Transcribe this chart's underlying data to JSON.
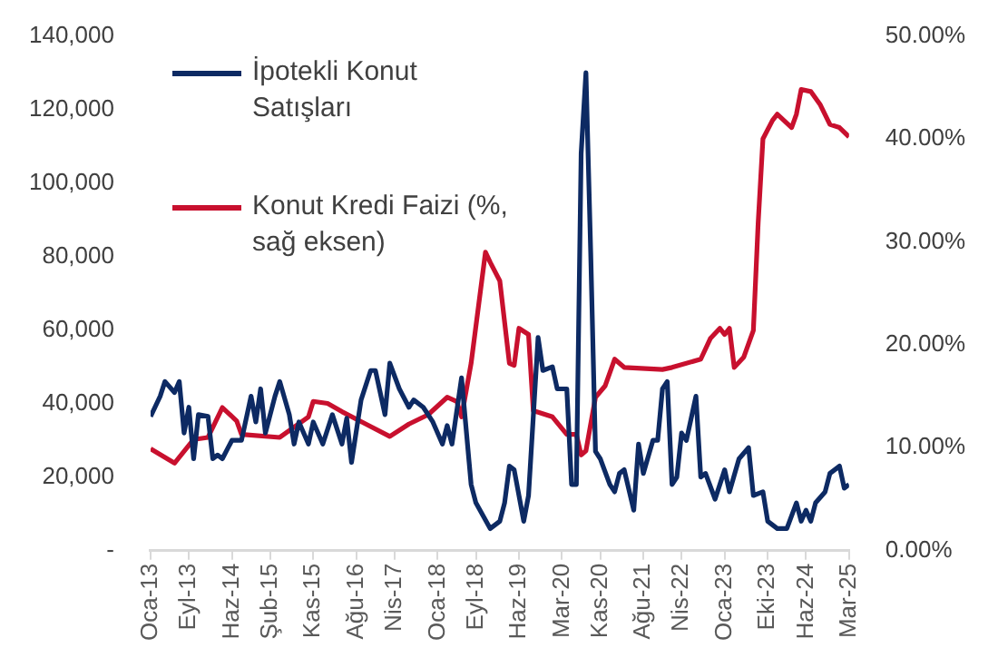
{
  "chart_data": {
    "type": "line",
    "legend": "top left",
    "xlim": [
      "2013-01",
      "2025-03"
    ],
    "xticks": [
      {
        "value": "2013-01",
        "label": "Oca-13"
      },
      {
        "value": "2013-09",
        "label": "Eyl-13"
      },
      {
        "value": "2014-06",
        "label": "Haz-14"
      },
      {
        "value": "2015-02",
        "label": "Şub-15"
      },
      {
        "value": "2015-11",
        "label": "Kas-15"
      },
      {
        "value": "2016-08",
        "label": "Ağu-16"
      },
      {
        "value": "2017-04",
        "label": "Nis-17"
      },
      {
        "value": "2018-01",
        "label": "Oca-18"
      },
      {
        "value": "2018-09",
        "label": "Eyl-18"
      },
      {
        "value": "2019-06",
        "label": "Haz-19"
      },
      {
        "value": "2020-03",
        "label": "Mar-20"
      },
      {
        "value": "2020-11",
        "label": "Kas-20"
      },
      {
        "value": "2021-08",
        "label": "Ağu-21"
      },
      {
        "value": "2022-04",
        "label": "Nis-22"
      },
      {
        "value": "2023-01",
        "label": "Oca-23"
      },
      {
        "value": "2023-10",
        "label": "Eki-23"
      },
      {
        "value": "2024-06",
        "label": "Haz-24"
      },
      {
        "value": "2025-03",
        "label": "Mar-25"
      }
    ],
    "ylim": [
      0,
      140000
    ],
    "yticks": [
      {
        "value": 0,
        "label": "-"
      },
      {
        "value": 20000,
        "label": "20,000"
      },
      {
        "value": 40000,
        "label": "40,000"
      },
      {
        "value": 60000,
        "label": "60,000"
      },
      {
        "value": 80000,
        "label": "80,000"
      },
      {
        "value": 100000,
        "label": "100,000"
      },
      {
        "value": 120000,
        "label": "120,000"
      },
      {
        "value": 140000,
        "label": "140,000"
      }
    ],
    "y2lim": [
      0,
      50
    ],
    "y2ticks": [
      {
        "value": 0,
        "label": "0.00%"
      },
      {
        "value": 10,
        "label": "10.00%"
      },
      {
        "value": 20,
        "label": "20.00%"
      },
      {
        "value": 30,
        "label": "30.00%"
      },
      {
        "value": 40,
        "label": "40.00%"
      },
      {
        "value": 50,
        "label": "50.00%"
      }
    ],
    "series": [
      {
        "name": "İpotekli Konut Satışları",
        "color": "#0d2a63",
        "x": [
          "2013-01",
          "2013-03",
          "2013-04",
          "2013-06",
          "2013-07",
          "2013-08",
          "2013-09",
          "2013-10",
          "2013-11",
          "2014-01",
          "2014-02",
          "2014-03",
          "2014-04",
          "2014-06",
          "2014-08",
          "2014-10",
          "2014-11",
          "2014-12",
          "2015-01",
          "2015-03",
          "2015-04",
          "2015-06",
          "2015-07",
          "2015-08",
          "2015-10",
          "2015-11",
          "2016-01",
          "2016-03",
          "2016-05",
          "2016-06",
          "2016-07",
          "2016-09",
          "2016-11",
          "2016-12",
          "2017-02",
          "2017-03",
          "2017-05",
          "2017-07",
          "2017-08",
          "2017-10",
          "2017-12",
          "2018-02",
          "2018-03",
          "2018-04",
          "2018-06",
          "2018-08",
          "2018-09",
          "2018-12",
          "2019-02",
          "2019-03",
          "2019-04",
          "2019-05",
          "2019-07",
          "2019-08",
          "2019-10",
          "2019-11",
          "2020-01",
          "2020-02",
          "2020-04",
          "2020-05",
          "2020-06",
          "2020-07",
          "2020-08",
          "2020-09",
          "2020-10",
          "2020-11",
          "2021-01",
          "2021-02",
          "2021-03",
          "2021-04",
          "2021-06",
          "2021-07",
          "2021-08",
          "2021-10",
          "2021-11",
          "2021-12",
          "2022-01",
          "2022-02",
          "2022-03",
          "2022-04",
          "2022-05",
          "2022-07",
          "2022-08",
          "2022-09",
          "2022-11",
          "2023-01",
          "2023-02",
          "2023-04",
          "2023-06",
          "2023-07",
          "2023-09",
          "2023-10",
          "2023-12",
          "2024-02",
          "2024-04",
          "2024-05",
          "2024-06",
          "2024-07",
          "2024-08",
          "2024-10",
          "2024-11",
          "2025-01",
          "2025-02",
          "2025-03"
        ],
        "values": [
          36500,
          42000,
          46000,
          43000,
          46000,
          32000,
          39000,
          25000,
          37000,
          36500,
          25000,
          26000,
          25000,
          30000,
          30000,
          42000,
          35000,
          44000,
          32000,
          42000,
          46000,
          37000,
          29000,
          35000,
          29000,
          35000,
          29000,
          37000,
          29000,
          36000,
          24000,
          41000,
          49000,
          49000,
          37000,
          51000,
          44000,
          39000,
          41000,
          39000,
          35000,
          29000,
          34000,
          29000,
          47000,
          18000,
          13000,
          6000,
          8000,
          13000,
          23000,
          22000,
          8000,
          15000,
          58000,
          49000,
          50000,
          44000,
          44000,
          18000,
          18000,
          108000,
          130000,
          81000,
          27000,
          25000,
          18000,
          16000,
          21000,
          22000,
          11000,
          29000,
          21000,
          30000,
          30000,
          44000,
          46000,
          18000,
          20000,
          32000,
          30000,
          42000,
          20000,
          21000,
          14000,
          22000,
          16000,
          25000,
          28000,
          15000,
          16000,
          8000,
          6000,
          6000,
          13000,
          8000,
          11000,
          8000,
          13000,
          16000,
          21000,
          23000,
          17000,
          18000
        ]
      },
      {
        "name": "Konut Kredi Faizi (%, sağ eksen)",
        "color": "#c8102e",
        "axis": "y2",
        "x": [
          "2013-01",
          "2013-06",
          "2013-10",
          "2014-01",
          "2014-04",
          "2014-07",
          "2014-08",
          "2015-04",
          "2015-10",
          "2015-11",
          "2016-02",
          "2016-05",
          "2016-10",
          "2017-03",
          "2017-07",
          "2017-11",
          "2018-03",
          "2018-05",
          "2018-06",
          "2018-08",
          "2018-11",
          "2018-12",
          "2019-02",
          "2019-04",
          "2019-05",
          "2019-06",
          "2019-08",
          "2019-09",
          "2020-01",
          "2020-04",
          "2020-06",
          "2020-07",
          "2020-08",
          "2020-10",
          "2020-12",
          "2021-02",
          "2021-04",
          "2021-12",
          "2022-02",
          "2022-08",
          "2022-10",
          "2022-12",
          "2023-01",
          "2023-02",
          "2023-03",
          "2023-05",
          "2023-07",
          "2023-08",
          "2023-09",
          "2023-11",
          "2023-12",
          "2024-03",
          "2024-04",
          "2024-05",
          "2024-07",
          "2024-09",
          "2024-11",
          "2025-01",
          "2025-03"
        ],
        "values": [
          9.9,
          8.5,
          10.8,
          11,
          13.9,
          12.6,
          11.3,
          11,
          13,
          14.5,
          14.3,
          13.5,
          12.3,
          11.1,
          12.3,
          13.2,
          14.9,
          14.5,
          13,
          18.2,
          29,
          28,
          26.2,
          18.2,
          18,
          21.6,
          21,
          13.6,
          13,
          11.3,
          11.3,
          9.3,
          9.7,
          14.9,
          16,
          18.6,
          17.8,
          17.6,
          17.8,
          18.6,
          20.6,
          21.6,
          21,
          21.6,
          17.8,
          18.8,
          21.4,
          31.8,
          40,
          41.8,
          42.4,
          41.1,
          42.4,
          44.8,
          44.6,
          43.3,
          41.4,
          41.1,
          40.2
        ]
      }
    ]
  }
}
